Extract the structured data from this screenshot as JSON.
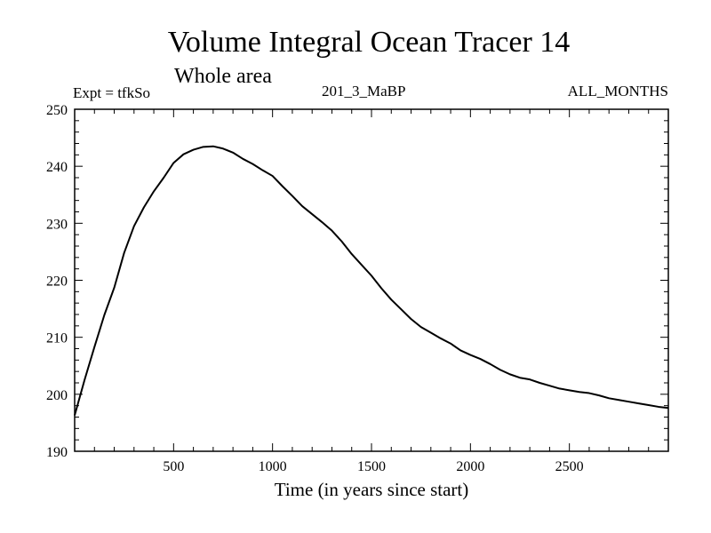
{
  "chart_data": {
    "type": "line",
    "title": "Volume Integral Ocean Tracer 14",
    "subtitle": "Whole area",
    "experiment": "Expt = tfkSo",
    "run_label": "201_3_MaBP",
    "months_label": "ALL_MONTHS",
    "xlabel": "Time (in years since start)",
    "ylabel": "",
    "xlim": [
      0,
      3000
    ],
    "ylim": [
      190,
      250
    ],
    "x_ticks": [
      500,
      1000,
      1500,
      2000,
      2500
    ],
    "y_ticks": [
      190,
      200,
      210,
      220,
      230,
      240,
      250
    ],
    "grid": false,
    "series": [
      {
        "x": [
          0,
          50,
          100,
          150,
          200,
          250,
          300,
          350,
          400,
          450,
          500,
          550,
          600,
          650,
          700,
          750,
          800,
          850,
          900,
          950,
          1000,
          1050,
          1100,
          1150,
          1200,
          1250,
          1300,
          1350,
          1400,
          1450,
          1500,
          1550,
          1600,
          1650,
          1700,
          1750,
          1800,
          1850,
          1900,
          1950,
          2000,
          2050,
          2100,
          2150,
          2200,
          2250,
          2300,
          2350,
          2400,
          2450,
          2500,
          2550,
          2600,
          2650,
          2700,
          2750,
          2800,
          2850,
          2900,
          2950,
          3000
        ],
        "y": [
          196.3,
          202.5,
          208.3,
          213.9,
          218.7,
          224.8,
          229.5,
          232.8,
          235.6,
          238.0,
          240.6,
          242.1,
          242.9,
          243.4,
          243.5,
          243.1,
          242.4,
          241.3,
          240.4,
          239.3,
          238.3,
          236.5,
          234.8,
          233.0,
          231.6,
          230.2,
          228.7,
          226.8,
          224.6,
          222.7,
          220.8,
          218.6,
          216.6,
          214.9,
          213.2,
          211.8,
          210.8,
          209.8,
          208.9,
          207.7,
          206.9,
          206.2,
          205.3,
          204.3,
          203.5,
          202.9,
          202.6,
          202.0,
          201.5,
          201.0,
          200.7,
          200.4,
          200.2,
          199.8,
          199.3,
          199.0,
          198.7,
          198.4,
          198.1,
          197.8,
          197.6
        ]
      }
    ]
  }
}
